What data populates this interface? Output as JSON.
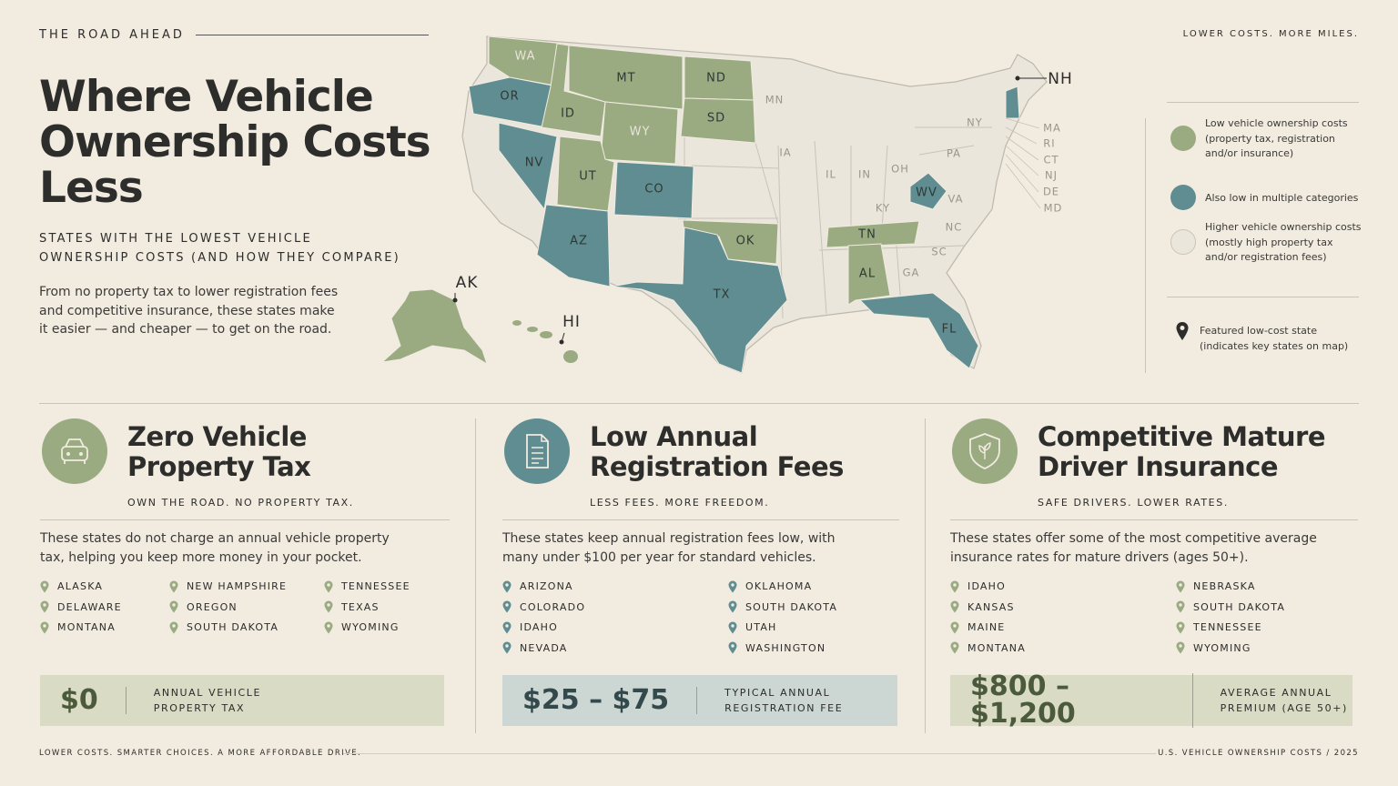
{
  "header": {
    "kicker": "THE ROAD AHEAD",
    "tagline": "LOWER COSTS. MORE MILES.",
    "title": "Where Vehicle Ownership Costs Less",
    "subtitle": "STATES WITH THE LOWEST VEHICLE OWNERSHIP COSTS (AND HOW THEY COMPARE)",
    "intro": "From no property tax to lower registration fees and competitive insurance, these states make it easier — and cheaper — to get on the road."
  },
  "map": {
    "states": [
      {
        "label": "WA",
        "color": "#9aab82"
      },
      {
        "label": "OR",
        "color": "#5f8d91"
      },
      {
        "label": "ID",
        "color": "#9aab82"
      },
      {
        "label": "MT",
        "color": "#9aab82"
      },
      {
        "label": "WY",
        "color": "#9aab82"
      },
      {
        "label": "ND",
        "color": "#9aab82"
      },
      {
        "label": "SD",
        "color": "#9aab82"
      },
      {
        "label": "NV",
        "color": "#5f8d91"
      },
      {
        "label": "UT",
        "color": "#9aab82"
      },
      {
        "label": "CO",
        "color": "#5f8d91"
      },
      {
        "label": "AZ",
        "color": "#5f8d91"
      },
      {
        "label": "OK",
        "color": "#9aab82"
      },
      {
        "label": "TX",
        "color": "#5f8d91"
      },
      {
        "label": "TN",
        "color": "#9aab82"
      },
      {
        "label": "AL",
        "color": "#9aab82"
      },
      {
        "label": "FL",
        "color": "#5f8d91"
      },
      {
        "label": "WV",
        "color": "#5f8d91"
      },
      {
        "label": "NH",
        "color": "#5f8d91"
      },
      {
        "label": "AK",
        "color": "#9aab82"
      },
      {
        "label": "HI",
        "color": "#9aab82"
      }
    ],
    "other_labels": [
      "MN",
      "IA",
      "IL",
      "IN",
      "OH",
      "NY",
      "PA",
      "KY",
      "VA",
      "NC",
      "SC",
      "GA",
      "MA",
      "RI",
      "CT",
      "NJ",
      "DE",
      "MD"
    ]
  },
  "legend": [
    {
      "text": "Low vehicle ownership costs (property tax, registration and/or insurance)",
      "color": "#9aab82"
    },
    {
      "text": "Also low in multiple categories",
      "color": "#5f8d91"
    },
    {
      "text": "Higher vehicle ownership costs (mostly high property tax and/or registration fees)",
      "color": "#ebe6dc"
    },
    {
      "text": "Featured low-cost state (indicates key states on map)"
    }
  ],
  "cards": [
    {
      "title": "Zero Vehicle Property Tax",
      "tagline": "OWN THE ROAD. NO PROPERTY TAX.",
      "text": "These states do not charge an annual vehicle property tax, helping you keep more money in your pocket.",
      "states": [
        "ALASKA",
        "DELAWARE",
        "MONTANA",
        "NEW HAMPSHIRE",
        "OREGON",
        "SOUTH DAKOTA",
        "TENNESSEE",
        "TEXAS",
        "WYOMING"
      ],
      "stat": "$0",
      "stat_label": "ANNUAL VEHICLE PROPERTY TAX",
      "color": "#9aab82",
      "box": "#d9dbc4"
    },
    {
      "title": "Low Annual Registration Fees",
      "tagline": "LESS FEES. MORE FREEDOM.",
      "text": "These states keep annual registration fees low, with many under $100 per year for standard vehicles.",
      "states": [
        "ARIZONA",
        "COLORADO",
        "IDAHO",
        "NEVADA",
        "OKLAHOMA",
        "SOUTH DAKOTA",
        "UTAH",
        "WASHINGTON"
      ],
      "stat": "$25 – $75",
      "stat_label": "TYPICAL ANNUAL REGISTRATION FEE",
      "color": "#5f8d91",
      "box": "#ccd6d2"
    },
    {
      "title": "Competitive Mature Driver Insurance",
      "tagline": "SAFE DRIVERS. LOWER RATES.",
      "text": "These states offer some of the most competitive average insurance rates for mature drivers (ages 50+).",
      "states": [
        "IDAHO",
        "KANSAS",
        "MAINE",
        "MONTANA",
        "NEBRASKA",
        "SOUTH DAKOTA",
        "TENNESSEE",
        "WYOMING"
      ],
      "stat": "$800 – $1,200",
      "stat_label": "AVERAGE ANNUAL PREMIUM (AGE 50+)",
      "color": "#9aab82",
      "box": "#d9dbc4"
    }
  ],
  "footer": {
    "left": "LOWER COSTS. SMARTER CHOICES. A MORE AFFORDABLE DRIVE.",
    "right": "U.S. VEHICLE OWNERSHIP COSTS  /  2025"
  }
}
